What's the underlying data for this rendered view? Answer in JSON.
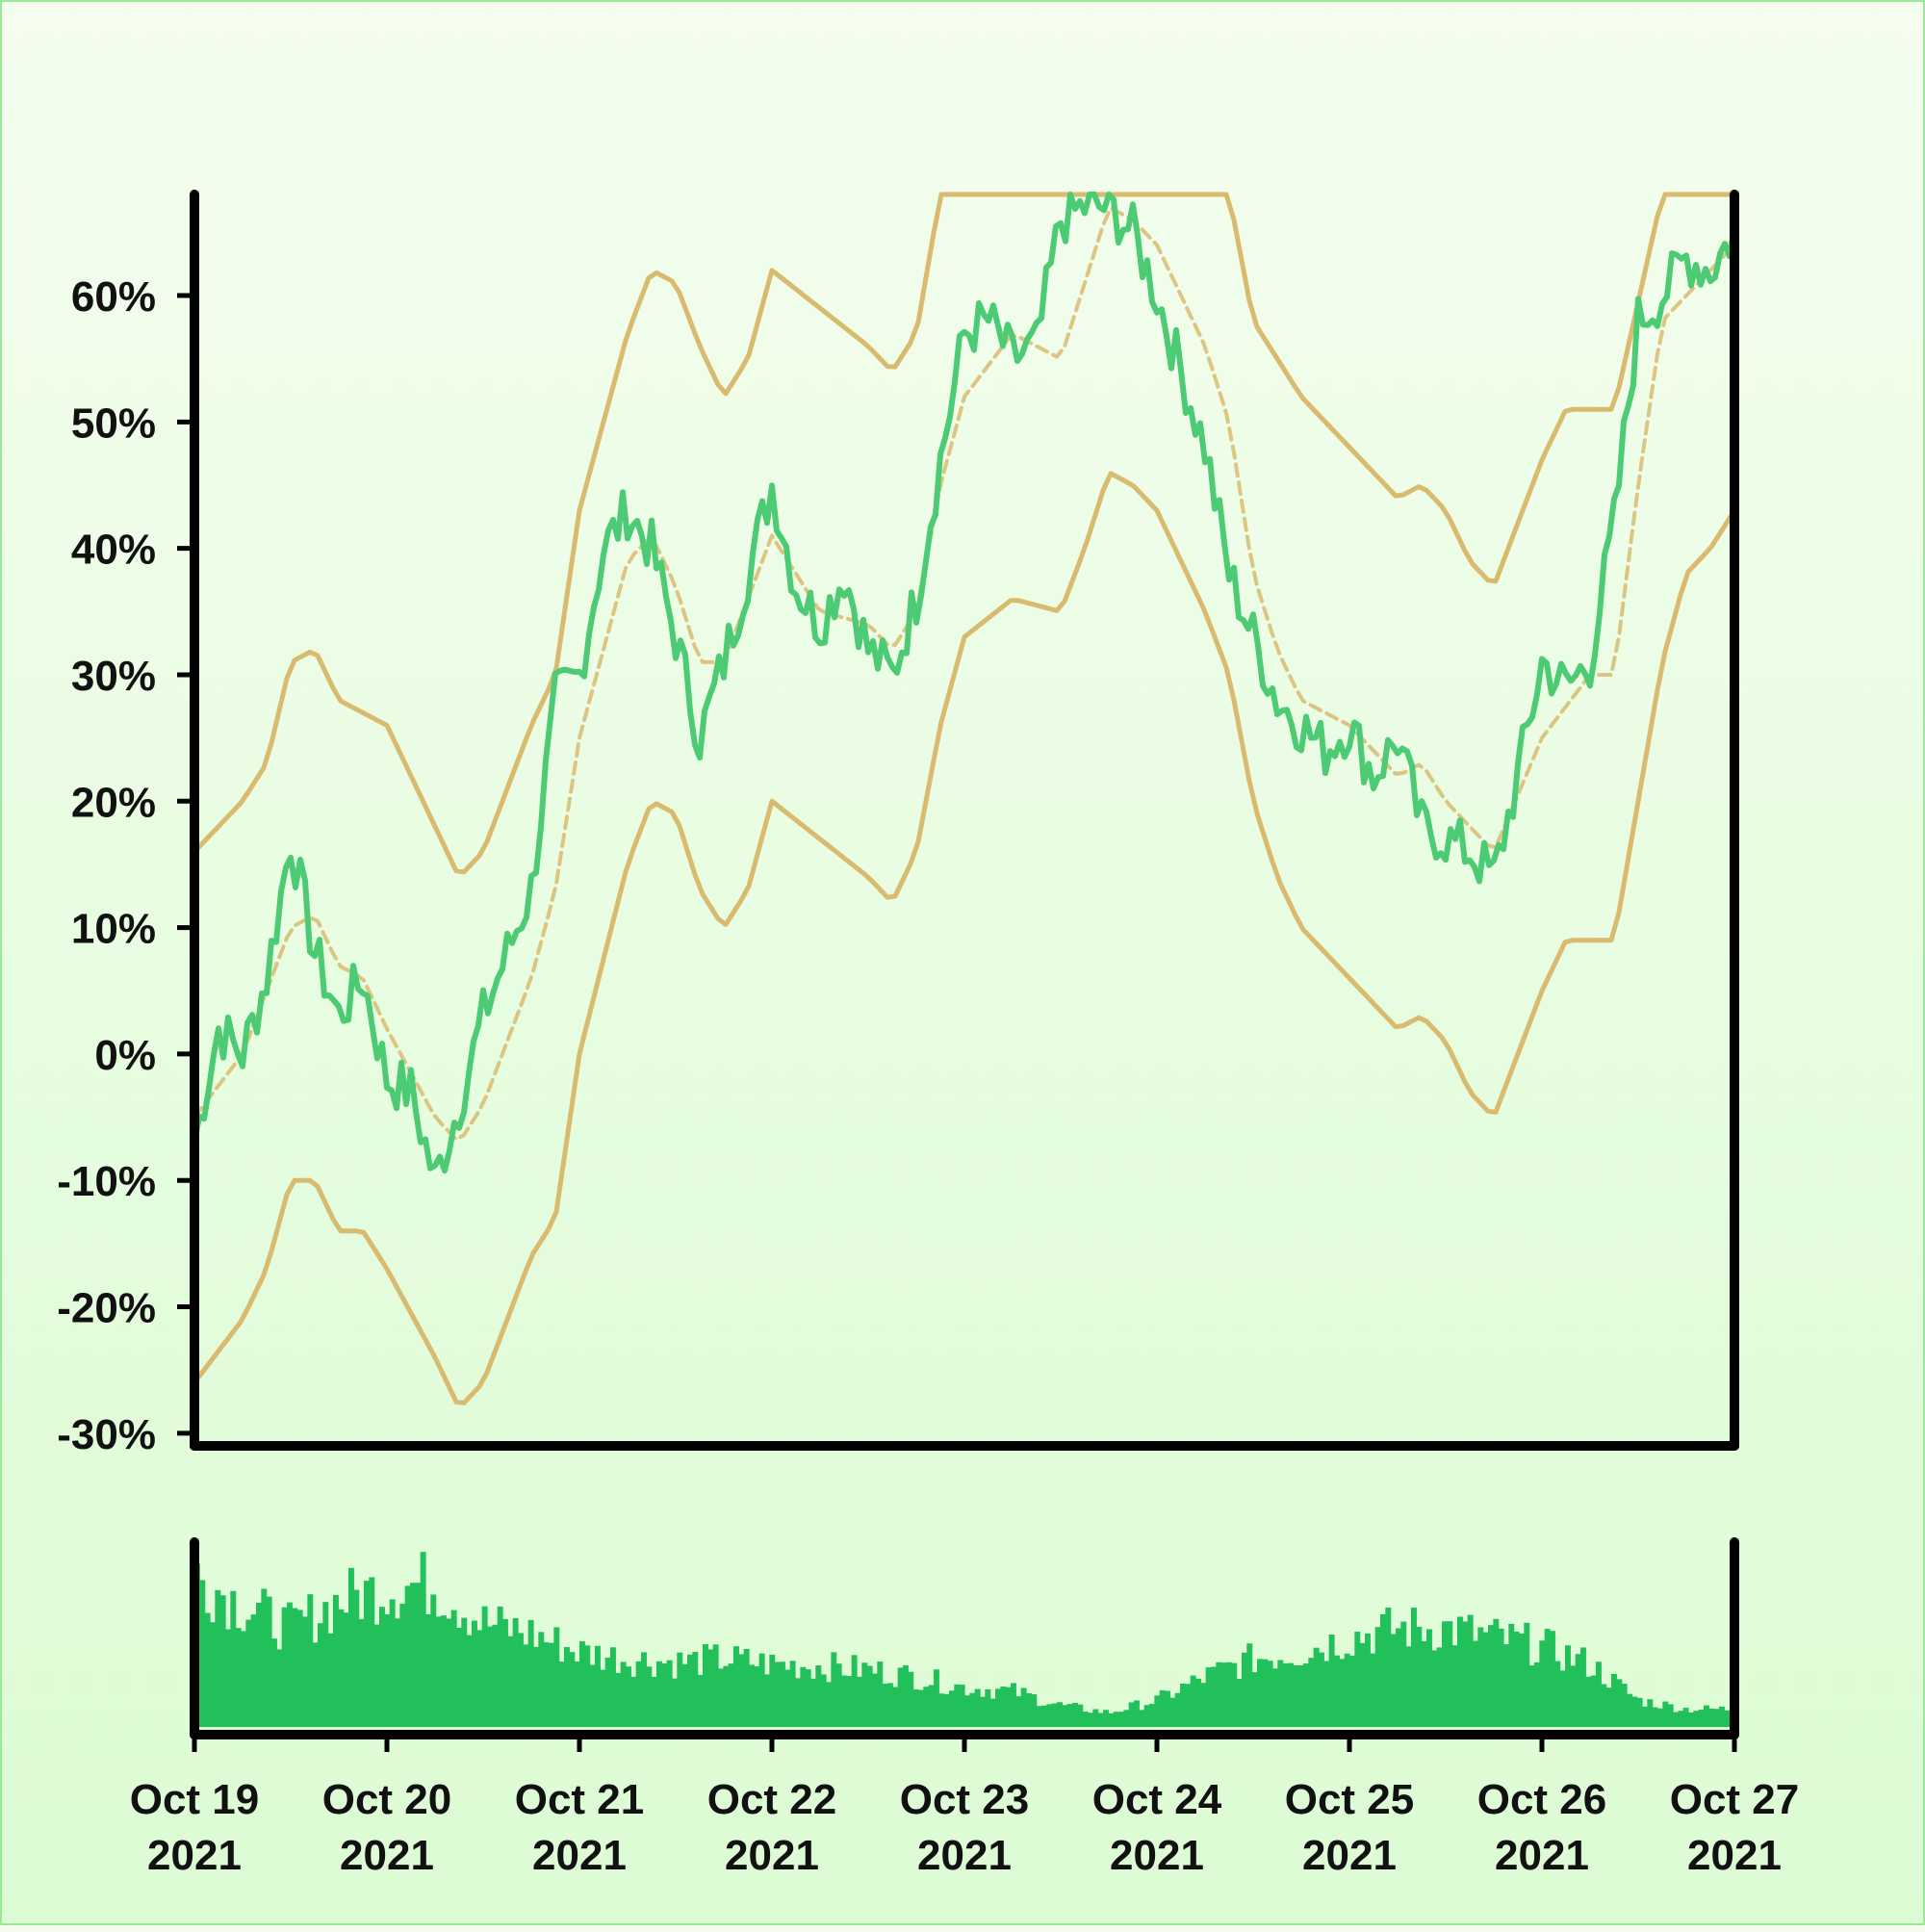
{
  "chart_data": {
    "type": "line",
    "ylabel": "",
    "xlabel": "",
    "ylim": [
      -31,
      68
    ],
    "y_ticks": [
      -30,
      -20,
      -10,
      0,
      10,
      20,
      30,
      40,
      50,
      60
    ],
    "y_tick_labels": [
      "-30%",
      "-20%",
      "-10%",
      "0%",
      "10%",
      "20%",
      "30%",
      "40%",
      "50%",
      "60%"
    ],
    "x_range": [
      "2021-10-19",
      "2021-10-27"
    ],
    "x_ticks": [
      {
        "date": "2021-10-19",
        "line1": "Oct 19",
        "line2": "2021"
      },
      {
        "date": "2021-10-20",
        "line1": "Oct 20",
        "line2": "2021"
      },
      {
        "date": "2021-10-21",
        "line1": "Oct 21",
        "line2": "2021"
      },
      {
        "date": "2021-10-22",
        "line1": "Oct 22",
        "line2": "2021"
      },
      {
        "date": "2021-10-23",
        "line1": "Oct 23",
        "line2": "2021"
      },
      {
        "date": "2021-10-24",
        "line1": "Oct 24",
        "line2": "2021"
      },
      {
        "date": "2021-10-25",
        "line1": "Oct 25",
        "line2": "2021"
      },
      {
        "date": "2021-10-26",
        "line1": "Oct 26",
        "line2": "2021"
      },
      {
        "date": "2021-10-27",
        "line1": "Oct 27",
        "line2": "2021"
      }
    ],
    "colors": {
      "price": "#4cca74",
      "bands": "#d9bb70",
      "volume": "#22c05a",
      "axis": "#000000"
    },
    "series": [
      {
        "style": "solid-green",
        "points": [
          [
            "2021-10-19 00:00",
            -7
          ],
          [
            "2021-10-19 03:00",
            2
          ],
          [
            "2021-10-19 06:00",
            0
          ],
          [
            "2021-10-19 09:00",
            6
          ],
          [
            "2021-10-19 12:00",
            17
          ],
          [
            "2021-10-19 15:00",
            8
          ],
          [
            "2021-10-19 18:00",
            3
          ],
          [
            "2021-10-19 21:00",
            6
          ],
          [
            "2021-10-20 00:00",
            -2
          ],
          [
            "2021-10-20 03:00",
            -3
          ],
          [
            "2021-10-20 06:00",
            -10
          ],
          [
            "2021-10-20 09:00",
            -4
          ],
          [
            "2021-10-20 12:00",
            3
          ],
          [
            "2021-10-20 15:00",
            8
          ],
          [
            "2021-10-20 18:00",
            13
          ],
          [
            "2021-10-20 21:00",
            28
          ],
          [
            "2021-10-21 00:00",
            30
          ],
          [
            "2021-10-21 03:00",
            40
          ],
          [
            "2021-10-21 06:00",
            43
          ],
          [
            "2021-10-21 09:00",
            40
          ],
          [
            "2021-10-21 12:00",
            33
          ],
          [
            "2021-10-21 15:00",
            25
          ],
          [
            "2021-10-21 18:00",
            31
          ],
          [
            "2021-10-21 21:00",
            38
          ],
          [
            "2021-10-22 00:00",
            45
          ],
          [
            "2021-10-22 03:00",
            37
          ],
          [
            "2021-10-22 06:00",
            34
          ],
          [
            "2021-10-22 09:00",
            38
          ],
          [
            "2021-10-22 12:00",
            32
          ],
          [
            "2021-10-22 15:00",
            30
          ],
          [
            "2021-10-22 18:00",
            36
          ],
          [
            "2021-10-22 21:00",
            47
          ],
          [
            "2021-10-23 00:00",
            57
          ],
          [
            "2021-10-23 03:00",
            58
          ],
          [
            "2021-10-23 06:00",
            55
          ],
          [
            "2021-10-23 09:00",
            56
          ],
          [
            "2021-10-23 12:00",
            66
          ],
          [
            "2021-10-23 15:00",
            67
          ],
          [
            "2021-10-23 18:00",
            67
          ],
          [
            "2021-10-23 21:00",
            65
          ],
          [
            "2021-10-24 00:00",
            60
          ],
          [
            "2021-10-24 03:00",
            54
          ],
          [
            "2021-10-24 06:00",
            48
          ],
          [
            "2021-10-24 09:00",
            38
          ],
          [
            "2021-10-24 12:00",
            33
          ],
          [
            "2021-10-24 15:00",
            28
          ],
          [
            "2021-10-24 18:00",
            26
          ],
          [
            "2021-10-24 21:00",
            24
          ],
          [
            "2021-10-25 00:00",
            26
          ],
          [
            "2021-10-25 03:00",
            22
          ],
          [
            "2021-10-25 06:00",
            25
          ],
          [
            "2021-10-25 09:00",
            18
          ],
          [
            "2021-10-25 12:00",
            17
          ],
          [
            "2021-10-25 15:00",
            16
          ],
          [
            "2021-10-25 18:00",
            14
          ],
          [
            "2021-10-25 21:00",
            22
          ],
          [
            "2021-10-26 00:00",
            31
          ],
          [
            "2021-10-26 03:00",
            29
          ],
          [
            "2021-10-26 06:00",
            31
          ],
          [
            "2021-10-26 09:00",
            42
          ],
          [
            "2021-10-26 12:00",
            58
          ],
          [
            "2021-10-26 15:00",
            60
          ],
          [
            "2021-10-26 18:00",
            63
          ],
          [
            "2021-10-26 21:00",
            62
          ],
          [
            "2021-10-27 00:00",
            65
          ]
        ]
      },
      {
        "style": "dashed-moving-average",
        "points": [
          [
            "2021-10-19 00:00",
            -5
          ],
          [
            "2021-10-19 06:00",
            0
          ],
          [
            "2021-10-19 12:00",
            10
          ],
          [
            "2021-10-19 15:00",
            11
          ],
          [
            "2021-10-19 18:00",
            7
          ],
          [
            "2021-10-19 21:00",
            6
          ],
          [
            "2021-10-20 00:00",
            2
          ],
          [
            "2021-10-20 06:00",
            -5
          ],
          [
            "2021-10-20 09:00",
            -7
          ],
          [
            "2021-10-20 12:00",
            -4
          ],
          [
            "2021-10-20 18:00",
            6
          ],
          [
            "2021-10-20 21:00",
            13
          ],
          [
            "2021-10-21 00:00",
            25
          ],
          [
            "2021-10-21 06:00",
            39
          ],
          [
            "2021-10-21 09:00",
            41
          ],
          [
            "2021-10-21 12:00",
            37
          ],
          [
            "2021-10-21 15:00",
            31
          ],
          [
            "2021-10-21 18:00",
            31
          ],
          [
            "2021-10-21 21:00",
            36
          ],
          [
            "2021-10-22 00:00",
            41
          ],
          [
            "2021-10-22 06:00",
            35
          ],
          [
            "2021-10-22 12:00",
            34
          ],
          [
            "2021-10-22 15:00",
            32
          ],
          [
            "2021-10-22 18:00",
            35
          ],
          [
            "2021-10-22 21:00",
            45
          ],
          [
            "2021-10-23 00:00",
            52
          ],
          [
            "2021-10-23 06:00",
            57
          ],
          [
            "2021-10-23 12:00",
            55
          ],
          [
            "2021-10-23 15:00",
            61
          ],
          [
            "2021-10-23 18:00",
            67
          ],
          [
            "2021-10-23 21:00",
            66
          ],
          [
            "2021-10-24 00:00",
            64
          ],
          [
            "2021-10-24 06:00",
            56
          ],
          [
            "2021-10-24 09:00",
            50
          ],
          [
            "2021-10-24 12:00",
            38
          ],
          [
            "2021-10-24 15:00",
            32
          ],
          [
            "2021-10-24 18:00",
            28
          ],
          [
            "2021-10-25 00:00",
            26
          ],
          [
            "2021-10-25 06:00",
            22
          ],
          [
            "2021-10-25 09:00",
            23
          ],
          [
            "2021-10-25 12:00",
            20
          ],
          [
            "2021-10-25 15:00",
            18
          ],
          [
            "2021-10-25 18:00",
            16
          ],
          [
            "2021-10-26 00:00",
            25
          ],
          [
            "2021-10-26 06:00",
            30
          ],
          [
            "2021-10-26 09:00",
            30
          ],
          [
            "2021-10-26 12:00",
            45
          ],
          [
            "2021-10-26 15:00",
            58
          ],
          [
            "2021-10-26 18:00",
            60
          ],
          [
            "2021-10-26 21:00",
            62
          ],
          [
            "2021-10-27 00:00",
            64
          ]
        ]
      },
      {
        "style": "upper-band",
        "points": [
          [
            "2021-10-19 00:00",
            16
          ],
          [
            "2021-10-19 06:00",
            20
          ],
          [
            "2021-10-19 09:00",
            23
          ],
          [
            "2021-10-19 12:00",
            31
          ],
          [
            "2021-10-19 15:00",
            32
          ],
          [
            "2021-10-19 18:00",
            28
          ],
          [
            "2021-10-19 21:00",
            27
          ],
          [
            "2021-10-20 00:00",
            26
          ],
          [
            "2021-10-20 06:00",
            18
          ],
          [
            "2021-10-20 09:00",
            14
          ],
          [
            "2021-10-20 12:00",
            16
          ],
          [
            "2021-10-20 18:00",
            26
          ],
          [
            "2021-10-20 21:00",
            30
          ],
          [
            "2021-10-21 00:00",
            43
          ],
          [
            "2021-10-21 06:00",
            57
          ],
          [
            "2021-10-21 09:00",
            62
          ],
          [
            "2021-10-21 12:00",
            61
          ],
          [
            "2021-10-21 15:00",
            56
          ],
          [
            "2021-10-21 18:00",
            52
          ],
          [
            "2021-10-21 21:00",
            55
          ],
          [
            "2021-10-22 00:00",
            62
          ],
          [
            "2021-10-22 06:00",
            59
          ],
          [
            "2021-10-22 12:00",
            56
          ],
          [
            "2021-10-22 15:00",
            54
          ],
          [
            "2021-10-22 18:00",
            57
          ],
          [
            "2021-10-22 21:00",
            68
          ],
          [
            "2021-10-23 00:00",
            68
          ],
          [
            "2021-10-23 12:00",
            68
          ],
          [
            "2021-10-24 00:00",
            68
          ],
          [
            "2021-10-24 09:00",
            68
          ],
          [
            "2021-10-24 12:00",
            58
          ],
          [
            "2021-10-24 18:00",
            52
          ],
          [
            "2021-10-25 00:00",
            48
          ],
          [
            "2021-10-25 06:00",
            44
          ],
          [
            "2021-10-25 09:00",
            45
          ],
          [
            "2021-10-25 12:00",
            43
          ],
          [
            "2021-10-25 15:00",
            39
          ],
          [
            "2021-10-25 18:00",
            37
          ],
          [
            "2021-10-26 00:00",
            47
          ],
          [
            "2021-10-26 03:00",
            51
          ],
          [
            "2021-10-26 09:00",
            51
          ],
          [
            "2021-10-26 15:00",
            68
          ],
          [
            "2021-10-27 00:00",
            68
          ]
        ]
      },
      {
        "style": "lower-band",
        "points": [
          [
            "2021-10-19 00:00",
            -26
          ],
          [
            "2021-10-19 06:00",
            -21
          ],
          [
            "2021-10-19 09:00",
            -17
          ],
          [
            "2021-10-19 12:00",
            -10
          ],
          [
            "2021-10-19 15:00",
            -10
          ],
          [
            "2021-10-19 18:00",
            -14
          ],
          [
            "2021-10-19 21:00",
            -14
          ],
          [
            "2021-10-20 00:00",
            -17
          ],
          [
            "2021-10-20 06:00",
            -24
          ],
          [
            "2021-10-20 09:00",
            -28
          ],
          [
            "2021-10-20 12:00",
            -26
          ],
          [
            "2021-10-20 18:00",
            -16
          ],
          [
            "2021-10-20 21:00",
            -13
          ],
          [
            "2021-10-21 00:00",
            0
          ],
          [
            "2021-10-21 06:00",
            15
          ],
          [
            "2021-10-21 09:00",
            20
          ],
          [
            "2021-10-21 12:00",
            19
          ],
          [
            "2021-10-21 15:00",
            13
          ],
          [
            "2021-10-21 18:00",
            10
          ],
          [
            "2021-10-21 21:00",
            13
          ],
          [
            "2021-10-22 00:00",
            20
          ],
          [
            "2021-10-22 06:00",
            17
          ],
          [
            "2021-10-22 12:00",
            14
          ],
          [
            "2021-10-22 15:00",
            12
          ],
          [
            "2021-10-22 18:00",
            16
          ],
          [
            "2021-10-22 21:00",
            26
          ],
          [
            "2021-10-23 00:00",
            33
          ],
          [
            "2021-10-23 06:00",
            36
          ],
          [
            "2021-10-23 12:00",
            35
          ],
          [
            "2021-10-23 15:00",
            40
          ],
          [
            "2021-10-23 18:00",
            46
          ],
          [
            "2021-10-23 21:00",
            45
          ],
          [
            "2021-10-24 00:00",
            43
          ],
          [
            "2021-10-24 06:00",
            35
          ],
          [
            "2021-10-24 09:00",
            30
          ],
          [
            "2021-10-24 12:00",
            20
          ],
          [
            "2021-10-24 15:00",
            14
          ],
          [
            "2021-10-24 18:00",
            10
          ],
          [
            "2021-10-25 00:00",
            6
          ],
          [
            "2021-10-25 06:00",
            2
          ],
          [
            "2021-10-25 09:00",
            3
          ],
          [
            "2021-10-25 12:00",
            1
          ],
          [
            "2021-10-25 15:00",
            -3
          ],
          [
            "2021-10-25 18:00",
            -5
          ],
          [
            "2021-10-26 00:00",
            5
          ],
          [
            "2021-10-26 03:00",
            9
          ],
          [
            "2021-10-26 09:00",
            9
          ],
          [
            "2021-10-26 15:00",
            31
          ],
          [
            "2021-10-26 18:00",
            38
          ],
          [
            "2021-10-26 21:00",
            40
          ],
          [
            "2021-10-27 00:00",
            43
          ]
        ]
      }
    ],
    "volume": {
      "style": "bars",
      "ylim": [
        0,
        1
      ],
      "profile": [
        [
          "2021-10-19 00:00",
          0.85
        ],
        [
          "2021-10-19 06:00",
          0.68
        ],
        [
          "2021-10-19 12:00",
          0.55
        ],
        [
          "2021-10-19 18:00",
          0.7
        ],
        [
          "2021-10-20 00:00",
          0.78
        ],
        [
          "2021-10-20 06:00",
          0.8
        ],
        [
          "2021-10-20 12:00",
          0.58
        ],
        [
          "2021-10-20 18:00",
          0.52
        ],
        [
          "2021-10-21 00:00",
          0.42
        ],
        [
          "2021-10-21 06:00",
          0.38
        ],
        [
          "2021-10-21 12:00",
          0.36
        ],
        [
          "2021-10-21 18:00",
          0.38
        ],
        [
          "2021-10-22 00:00",
          0.35
        ],
        [
          "2021-10-22 06:00",
          0.34
        ],
        [
          "2021-10-22 12:00",
          0.32
        ],
        [
          "2021-10-22 18:00",
          0.28
        ],
        [
          "2021-10-23 00:00",
          0.22
        ],
        [
          "2021-10-23 06:00",
          0.2
        ],
        [
          "2021-10-23 12:00",
          0.12
        ],
        [
          "2021-10-23 18:00",
          0.08
        ],
        [
          "2021-10-24 00:00",
          0.15
        ],
        [
          "2021-10-24 06:00",
          0.28
        ],
        [
          "2021-10-24 12:00",
          0.38
        ],
        [
          "2021-10-24 18:00",
          0.42
        ],
        [
          "2021-10-25 00:00",
          0.5
        ],
        [
          "2021-10-25 06:00",
          0.55
        ],
        [
          "2021-10-25 12:00",
          0.55
        ],
        [
          "2021-10-25 18:00",
          0.5
        ],
        [
          "2021-10-26 00:00",
          0.45
        ],
        [
          "2021-10-26 06:00",
          0.35
        ],
        [
          "2021-10-26 12:00",
          0.15
        ],
        [
          "2021-10-26 18:00",
          0.1
        ],
        [
          "2021-10-27 00:00",
          0.1
        ]
      ]
    }
  }
}
